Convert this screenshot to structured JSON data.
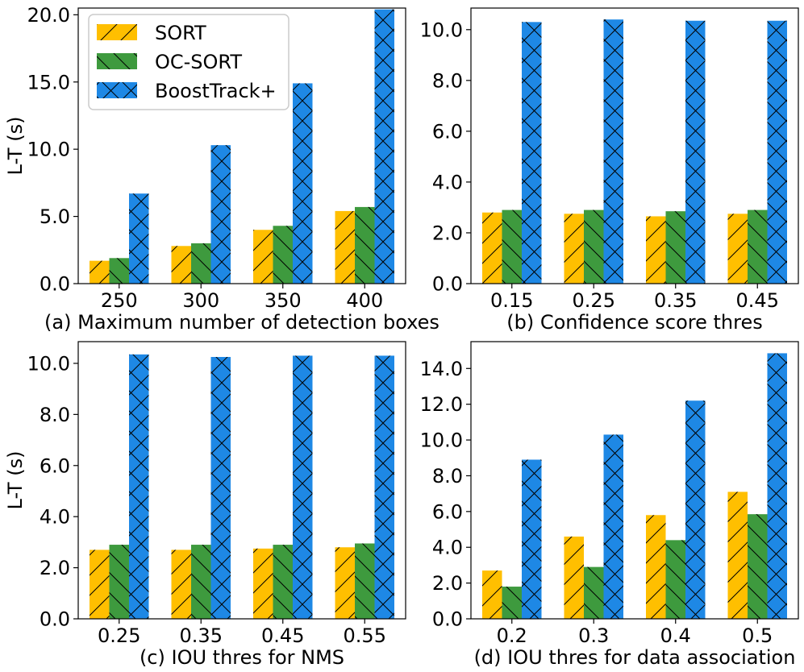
{
  "colors": {
    "SORT": "#ffbf00",
    "OC-SORT": "#3e9a3e",
    "BoostTrack+": "#1e88e5",
    "hatch": "#000000",
    "frame": "#000000"
  },
  "legend": {
    "placement": "top-left of panel (a)",
    "entries": [
      {
        "label": "SORT",
        "hatch": "forward-slash"
      },
      {
        "label": "OC-SORT",
        "hatch": "back-slash"
      },
      {
        "label": "BoostTrack+",
        "hatch": "cross"
      }
    ]
  },
  "chart_data": [
    {
      "type": "bar",
      "xlabel": "(a) Maximum number of detection boxes",
      "ylabel": "L-T (s)",
      "categories": [
        "250",
        "300",
        "350",
        "400"
      ],
      "ylim": [
        0,
        20.5
      ],
      "yticks": [
        0.0,
        5.0,
        10.0,
        15.0,
        20.0
      ],
      "ytick_labels": [
        "0.0",
        "5.0",
        "10.0",
        "15.0",
        "20.0"
      ],
      "grid": false,
      "series": [
        {
          "name": "SORT",
          "values": [
            1.7,
            2.8,
            4.0,
            5.4
          ]
        },
        {
          "name": "OC-SORT",
          "values": [
            1.9,
            3.0,
            4.3,
            5.7
          ]
        },
        {
          "name": "BoostTrack+",
          "values": [
            6.7,
            10.3,
            14.9,
            20.4
          ]
        }
      ]
    },
    {
      "type": "bar",
      "xlabel": "(b) Confidence score thres",
      "ylabel": "",
      "categories": [
        "0.15",
        "0.25",
        "0.35",
        "0.45"
      ],
      "ylim": [
        0,
        10.85
      ],
      "yticks": [
        0.0,
        2.0,
        4.0,
        6.0,
        8.0,
        10.0
      ],
      "ytick_labels": [
        "0.0",
        "2.0",
        "4.0",
        "6.0",
        "8.0",
        "10.0"
      ],
      "grid": false,
      "series": [
        {
          "name": "SORT",
          "values": [
            2.8,
            2.75,
            2.65,
            2.75
          ]
        },
        {
          "name": "OC-SORT",
          "values": [
            2.9,
            2.9,
            2.85,
            2.9
          ]
        },
        {
          "name": "BoostTrack+",
          "values": [
            10.3,
            10.4,
            10.35,
            10.35
          ]
        }
      ]
    },
    {
      "type": "bar",
      "xlabel": "(c) IOU thres for NMS",
      "ylabel": "L-T (s)",
      "categories": [
        "0.25",
        "0.35",
        "0.45",
        "0.55"
      ],
      "ylim": [
        0,
        10.85
      ],
      "yticks": [
        0.0,
        2.0,
        4.0,
        6.0,
        8.0,
        10.0
      ],
      "ytick_labels": [
        "0.0",
        "2.0",
        "4.0",
        "6.0",
        "8.0",
        "10.0"
      ],
      "grid": false,
      "series": [
        {
          "name": "SORT",
          "values": [
            2.7,
            2.7,
            2.75,
            2.8
          ]
        },
        {
          "name": "OC-SORT",
          "values": [
            2.9,
            2.9,
            2.9,
            2.95
          ]
        },
        {
          "name": "BoostTrack+",
          "values": [
            10.35,
            10.25,
            10.3,
            10.3
          ]
        }
      ]
    },
    {
      "type": "bar",
      "xlabel": "(d) IOU thres for data association",
      "ylabel": "",
      "categories": [
        "0.2",
        "0.3",
        "0.4",
        "0.5"
      ],
      "ylim": [
        0,
        15.5
      ],
      "yticks": [
        0.0,
        2.0,
        4.0,
        6.0,
        8.0,
        10.0,
        12.0,
        14.0
      ],
      "ytick_labels": [
        "0.0",
        "2.0",
        "4.0",
        "6.0",
        "8.0",
        "10.0",
        "12.0",
        "14.0"
      ],
      "grid": false,
      "series": [
        {
          "name": "SORT",
          "values": [
            2.7,
            4.6,
            5.8,
            7.1
          ]
        },
        {
          "name": "OC-SORT",
          "values": [
            1.8,
            2.9,
            4.4,
            5.85
          ]
        },
        {
          "name": "BoostTrack+",
          "values": [
            8.9,
            10.3,
            12.2,
            14.85
          ]
        }
      ]
    }
  ]
}
